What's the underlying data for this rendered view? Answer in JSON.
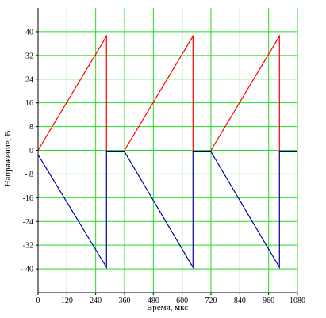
{
  "chart_data": {
    "type": "line",
    "xlabel": "Время, мкс",
    "ylabel": "Напряжение, В",
    "xlim": [
      0,
      1080
    ],
    "ylim": [
      -48,
      48
    ],
    "grid": true,
    "x_ticks": [
      "0",
      "120",
      "240",
      "360",
      "480",
      "600",
      "720",
      "840",
      "960",
      "1080"
    ],
    "y_ticks": [
      "40",
      "32",
      "24",
      "16",
      "8",
      "0",
      "- 8",
      "-16",
      "-24",
      "-32",
      "- 40"
    ],
    "x_tick_values": [
      0,
      120,
      240,
      360,
      480,
      600,
      720,
      840,
      960,
      1080
    ],
    "y_tick_values": [
      40,
      32,
      24,
      16,
      8,
      0,
      -8,
      -16,
      -24,
      -32,
      -40
    ],
    "series": [
      {
        "color": "#ff0000",
        "x": [
          0,
          285,
          285,
          360,
          360,
          645,
          645,
          720,
          720,
          1005,
          1005,
          1080
        ],
        "y": [
          0,
          38.5,
          -0.5,
          -0.5,
          0,
          38.5,
          -0.5,
          -0.5,
          0,
          38.5,
          -0.5,
          -0.5
        ]
      },
      {
        "color": "#0000aa",
        "x": [
          0,
          285,
          285,
          360,
          360,
          645,
          645,
          720,
          720,
          1005,
          1005,
          1080
        ],
        "y": [
          -1.5,
          -39.5,
          -0.5,
          -0.5,
          -0.5,
          -39.5,
          -0.5,
          -0.5,
          -0.5,
          -39.5,
          -0.5,
          -0.5
        ]
      },
      {
        "color": "#000000",
        "x": [
          285,
          360,
          645,
          720,
          1005,
          1080
        ],
        "y": [
          -0.3,
          -0.3,
          -0.3,
          -0.3,
          -0.3,
          -0.3
        ],
        "segments": [
          [
            0,
            1
          ],
          [
            2,
            3
          ],
          [
            4,
            5
          ]
        ]
      }
    ]
  },
  "colors": {
    "grid": "#22dd22",
    "frame": "#000000"
  }
}
